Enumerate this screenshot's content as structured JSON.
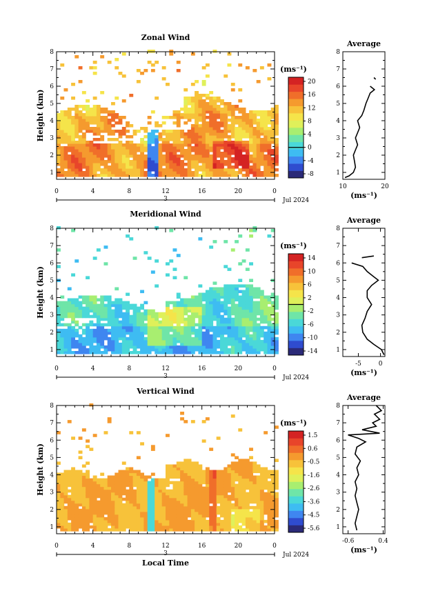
{
  "chart_data": [
    {
      "type": "heatmap",
      "name": "zonal",
      "title": "Zonal Wind",
      "ylabel": "Height (km)",
      "xticks": [
        "0",
        "4",
        "8",
        "12",
        "16",
        "20",
        "0"
      ],
      "yticks": [
        "1",
        "2",
        "3",
        "4",
        "5",
        "6",
        "7",
        "8"
      ],
      "ylim": [
        0.6,
        8
      ],
      "xlim": [
        0,
        24
      ],
      "day_label": "3",
      "date_label": "Jul 2024",
      "unit_label": "(ms⁻¹)",
      "colorbar_ticks": [
        "20",
        "16",
        "12",
        "8",
        "4",
        "0",
        "-4",
        "-8"
      ],
      "colorbar_range": [
        -10,
        22
      ],
      "average": {
        "title": "Average",
        "xticks": [
          "10",
          "20"
        ],
        "xlim": [
          10,
          20
        ],
        "xlabel": "(ms⁻¹)",
        "profile": [
          [
            10.5,
            0.7
          ],
          [
            11.5,
            0.8
          ],
          [
            12.5,
            1.0
          ],
          [
            13,
            1.3
          ],
          [
            12.8,
            1.6
          ],
          [
            12.5,
            2.0
          ],
          [
            13,
            2.3
          ],
          [
            13.5,
            2.6
          ],
          [
            13,
            3.0
          ],
          [
            13.5,
            3.3
          ],
          [
            14,
            3.6
          ],
          [
            13.5,
            4.0
          ],
          [
            14.5,
            4.3
          ],
          [
            15,
            4.6
          ],
          [
            15.5,
            5.0
          ],
          [
            16,
            5.3
          ],
          [
            16.5,
            5.6
          ],
          [
            17.5,
            5.8
          ],
          [
            16.5,
            6.0
          ]
        ],
        "profile_points": [
          [
            17.8,
            6.4
          ],
          [
            17.4,
            6.5
          ]
        ]
      }
    },
    {
      "type": "heatmap",
      "name": "meridional",
      "title": "Meridional Wind",
      "ylabel": "Height (km)",
      "xticks": [
        "0",
        "4",
        "8",
        "12",
        "16",
        "20",
        "0"
      ],
      "yticks": [
        "1",
        "2",
        "3",
        "4",
        "5",
        "6",
        "7",
        "8"
      ],
      "ylim": [
        0.6,
        8
      ],
      "xlim": [
        0,
        24
      ],
      "day_label": "3",
      "date_label": "Jul 2024",
      "unit_label": "(ms⁻¹)",
      "colorbar_ticks": [
        "14",
        "10",
        "6",
        "2",
        "-2",
        "-6",
        "-10",
        "-14"
      ],
      "colorbar_range": [
        -16,
        16
      ],
      "average": {
        "title": "Average",
        "xticks": [
          "-5",
          "0"
        ],
        "xlim": [
          -8.5,
          1
        ],
        "xlabel": "(ms⁻¹)",
        "profile": [
          [
            0.8,
            0.7
          ],
          [
            0.2,
            1.0
          ],
          [
            -1.5,
            1.3
          ],
          [
            -3,
            1.6
          ],
          [
            -4,
            2.0
          ],
          [
            -4.2,
            2.4
          ],
          [
            -3.5,
            2.8
          ],
          [
            -3,
            3.2
          ],
          [
            -2,
            3.6
          ],
          [
            -3,
            4.0
          ],
          [
            -3,
            4.4
          ],
          [
            -2,
            4.7
          ],
          [
            -0.5,
            5.0
          ],
          [
            -1.5,
            5.2
          ],
          [
            -3,
            5.5
          ],
          [
            -4,
            5.8
          ],
          [
            -6.5,
            6.0
          ]
        ],
        "profile_points": [
          [
            -4.2,
            6.3
          ],
          [
            -1.5,
            6.4
          ]
        ]
      }
    },
    {
      "type": "heatmap",
      "name": "vertical",
      "title": "Vertical Wind",
      "ylabel": "Height (km)",
      "xlabel": "Local Time",
      "xticks": [
        "0",
        "4",
        "8",
        "12",
        "16",
        "20",
        "0"
      ],
      "yticks": [
        "1",
        "2",
        "3",
        "4",
        "5",
        "6",
        "7",
        "8"
      ],
      "ylim": [
        0.6,
        8
      ],
      "xlim": [
        0,
        24
      ],
      "day_label": "3",
      "date_label": "Jul 2024",
      "unit_label": "(ms⁻¹)",
      "colorbar_ticks": [
        "1.5",
        "0.6",
        "-0.5",
        "-1.6",
        "-2.6",
        "-3.6",
        "-4.5",
        "-5.6"
      ],
      "colorbar_range": [
        -6.2,
        2.2
      ],
      "average": {
        "title": "Average",
        "xticks": [
          "-0.6",
          "0.4"
        ],
        "xlim": [
          -0.75,
          0.45
        ],
        "xlabel": "(ms⁻¹)",
        "profile": [
          [
            -0.35,
            0.8
          ],
          [
            -0.4,
            1.2
          ],
          [
            -0.35,
            1.6
          ],
          [
            -0.3,
            2.0
          ],
          [
            -0.35,
            2.4
          ],
          [
            -0.4,
            2.8
          ],
          [
            -0.35,
            3.2
          ],
          [
            -0.4,
            3.6
          ],
          [
            -0.3,
            4.0
          ],
          [
            -0.35,
            4.4
          ],
          [
            -0.25,
            4.8
          ],
          [
            -0.4,
            5.2
          ],
          [
            -0.35,
            5.6
          ],
          [
            -0.1,
            5.9
          ],
          [
            -0.3,
            6.1
          ],
          [
            -0.6,
            6.3
          ],
          [
            0.3,
            6.4
          ],
          [
            -0.2,
            6.6
          ],
          [
            0.2,
            6.8
          ],
          [
            0.1,
            7.0
          ],
          [
            0.3,
            7.2
          ],
          [
            0.15,
            7.5
          ],
          [
            0.35,
            7.7
          ],
          [
            0.2,
            8.0
          ]
        ]
      }
    }
  ],
  "colors": [
    "#2b2a78",
    "#2f4ccf",
    "#3f86f0",
    "#3ebcf2",
    "#4ad8d8",
    "#6fe5a8",
    "#a8ee70",
    "#dff05a",
    "#f5e44a",
    "#f7c23a",
    "#f59a2e",
    "#f06e2a",
    "#e8452a",
    "#d42323"
  ]
}
